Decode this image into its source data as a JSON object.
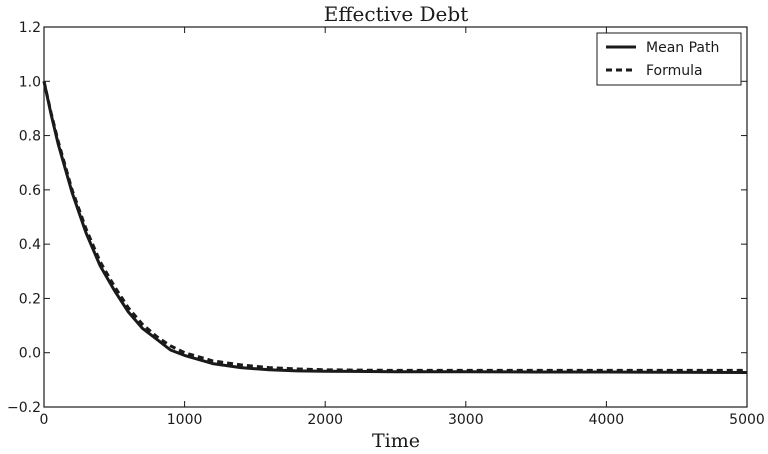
{
  "chart_data": {
    "type": "line",
    "title": "Effective Debt",
    "xlabel": "Time",
    "ylabel": "",
    "xlim": [
      0,
      5000
    ],
    "ylim": [
      -0.2,
      1.2
    ],
    "x_ticks": [
      "0",
      "1000",
      "2000",
      "3000",
      "4000",
      "5000"
    ],
    "y_ticks": [
      "−0.2",
      "0.0",
      "0.2",
      "0.4",
      "0.6",
      "0.8",
      "1.0",
      "1.2"
    ],
    "grid": false,
    "legend_position": "top-right",
    "series": [
      {
        "name": "Mean Path",
        "style": "solid",
        "color": "#1a1a1a",
        "x": [
          0,
          50,
          100,
          200,
          300,
          400,
          500,
          600,
          700,
          800,
          900,
          1000,
          1200,
          1400,
          1600,
          1800,
          2000,
          2200,
          2500,
          3000,
          3500,
          4000,
          4500,
          5000
        ],
        "y": [
          1.0,
          0.88,
          0.77,
          0.59,
          0.44,
          0.32,
          0.23,
          0.15,
          0.09,
          0.05,
          0.01,
          -0.01,
          -0.04,
          -0.055,
          -0.063,
          -0.067,
          -0.068,
          -0.069,
          -0.07,
          -0.07,
          -0.071,
          -0.071,
          -0.072,
          -0.073
        ]
      },
      {
        "name": "Formula",
        "style": "dashed",
        "color": "#1a1a1a",
        "x": [
          0,
          50,
          100,
          200,
          300,
          400,
          500,
          600,
          700,
          800,
          900,
          1000,
          1200,
          1400,
          1600,
          1800,
          2000,
          2200,
          2500,
          3000,
          3500,
          4000,
          4500,
          5000
        ],
        "y": [
          1.0,
          0.885,
          0.78,
          0.6,
          0.455,
          0.335,
          0.245,
          0.165,
          0.105,
          0.06,
          0.025,
          0.0,
          -0.03,
          -0.045,
          -0.055,
          -0.06,
          -0.063,
          -0.064,
          -0.065,
          -0.065,
          -0.065,
          -0.065,
          -0.065,
          -0.065
        ]
      }
    ]
  }
}
